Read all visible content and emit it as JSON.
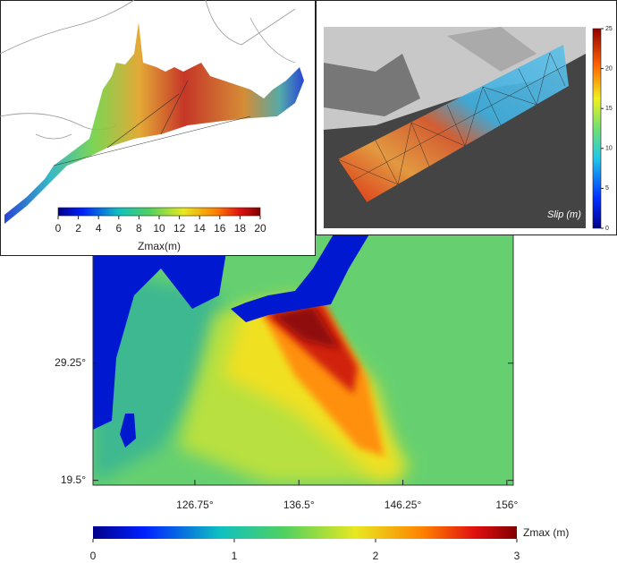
{
  "main_map": {
    "xlim": [
      117.2,
      156.6
    ],
    "ylim": [
      19.1,
      41.6
    ],
    "xticks": [
      {
        "value": 126.75,
        "label": "126.75°"
      },
      {
        "value": 136.5,
        "label": "136.5°"
      },
      {
        "value": 146.25,
        "label": "146.25°"
      },
      {
        "value": 156,
        "label": "156°"
      }
    ],
    "yticks": [
      {
        "value": 19.5,
        "label": "19.5°"
      },
      {
        "value": 29.25,
        "label": "29.25°"
      }
    ],
    "colorbar": {
      "label": "Zmax (m)",
      "lim": [
        0,
        3
      ],
      "ticks": [
        0,
        1,
        2,
        3
      ]
    }
  },
  "inset_3d": {
    "colorbar": {
      "label": "Zmax(m)",
      "lim": [
        0,
        20
      ],
      "ticks": [
        0,
        2,
        4,
        6,
        8,
        10,
        12,
        14,
        16,
        18,
        20
      ]
    }
  },
  "inset_slip": {
    "colorbar": {
      "label": "Slip (m)",
      "lim": [
        0,
        25
      ],
      "ticks": [
        0,
        5,
        10,
        15,
        20,
        25
      ]
    }
  }
}
